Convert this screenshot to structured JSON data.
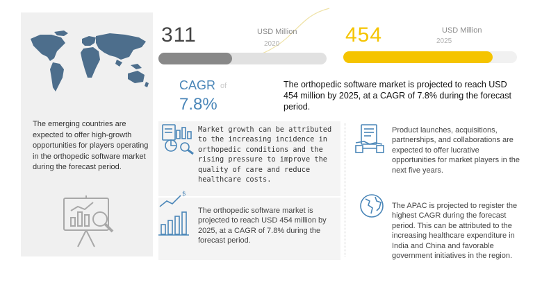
{
  "left_panel": {
    "text": "The emerging countries are expected to offer high-growth opportunities for players operating in the orthopedic software market during the forecast period."
  },
  "stat_2020": {
    "value": "311",
    "unit": "USD Million",
    "year": "2020",
    "bar_fill_fraction": 0.44,
    "bar_color": "#888888"
  },
  "stat_2025": {
    "value": "454",
    "unit": "USD Million",
    "year": "2025",
    "bar_fill_fraction": 0.86,
    "bar_color": "#f5c400"
  },
  "cagr": {
    "label": "CAGR",
    "of": "of",
    "value": "7.8%"
  },
  "headline": "The orthopedic software market is projected to reach USD 454 million by 2025, at a CAGR of 7.8% during the forecast period.",
  "insights": {
    "growth": "Market growth can be attributed to the increasing incidence in orthopedic conditions and the rising pressure to improve the quality of care and reduce healthcare costs.",
    "projection": "The orthopedic software market is projected to reach USD 454 million by 2025, at a CAGR of 7.8% during the forecast period.",
    "launches": "Product launches, acquisitions, partnerships, and collaborations are expected to offer lucrative opportunities for market players in the next five years.",
    "apac": "The APAC is projected to register the highest CAGR during the forecast period. This can be attributed to the increasing healthcare expenditure in India and China and favorable government initiatives in the region."
  },
  "colors": {
    "accent_blue": "#4a86b8",
    "accent_yellow": "#f5c400",
    "bar_grey": "#888888",
    "panel_grey": "#f0f0f0"
  },
  "icons": [
    "world-map-icon",
    "presentation-analytics-icon",
    "analytics-doc-icon",
    "growth-bars-icon",
    "handshake-icon",
    "globe-icon"
  ]
}
